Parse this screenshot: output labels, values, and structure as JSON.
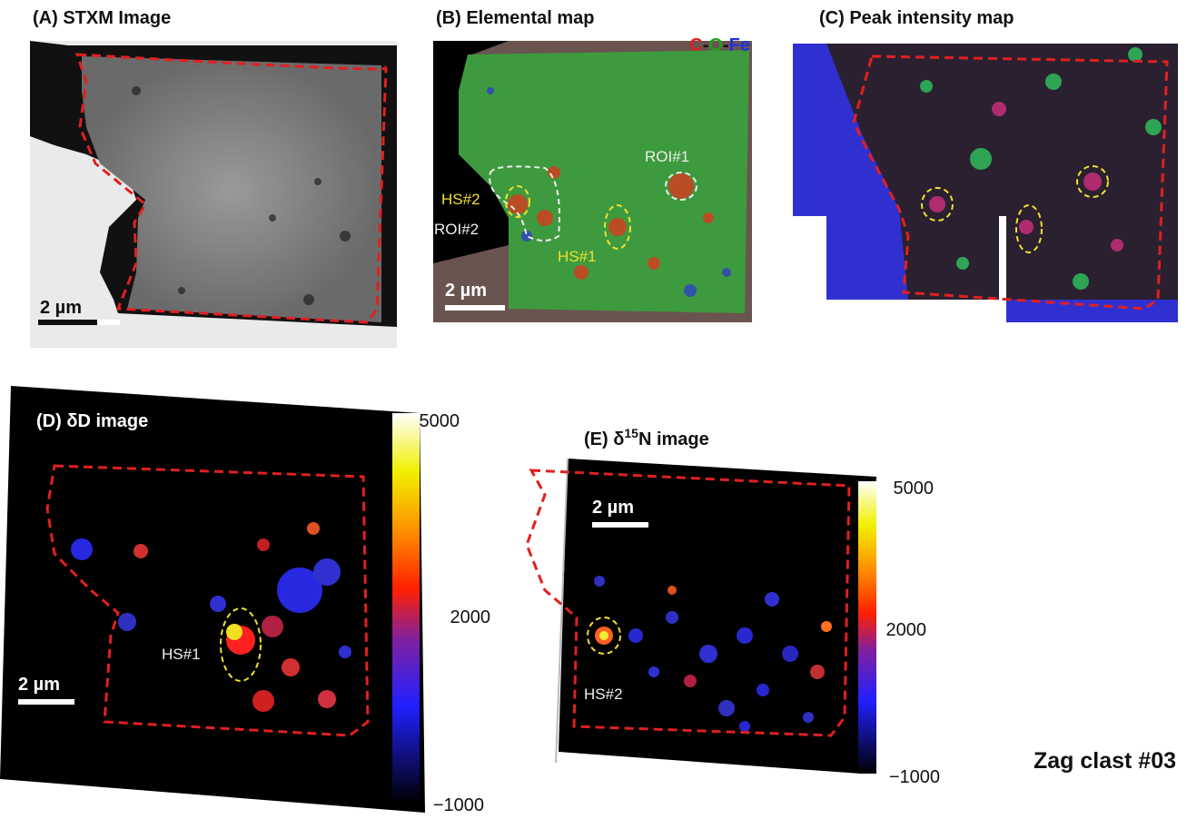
{
  "panels": {
    "a": {
      "title": "(A) STXM Image",
      "scale_bar": "2 µm"
    },
    "b": {
      "title": "(B) Elemental map",
      "legend": [
        "C",
        "-",
        "O",
        "-",
        "Fe"
      ],
      "scale_bar": "2 µm",
      "labels": [
        "ROI#1",
        "HS#2",
        "ROI#2",
        "HS#1"
      ]
    },
    "c": {
      "title": "(C) Peak intensity map"
    },
    "d": {
      "title": "(D) δD image",
      "colorbar": [
        "5000",
        "2000",
        "−1000"
      ],
      "label": "HS#1",
      "scale_bar": "2 µm"
    },
    "e": {
      "title_parts": [
        "(E) δ",
        "15",
        "N image"
      ],
      "colorbar": [
        "5000",
        "2000",
        "−1000"
      ],
      "label": "HS#2",
      "scale_bar": "2 µm"
    }
  },
  "caption": "Zag clast #03"
}
